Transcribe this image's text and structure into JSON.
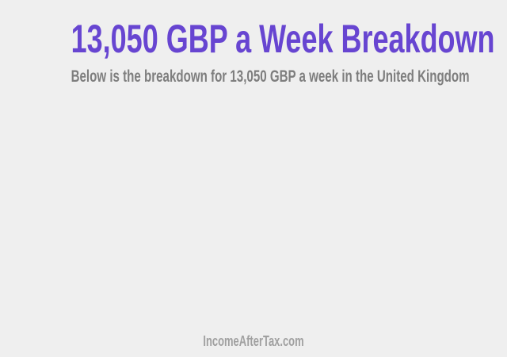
{
  "header": {
    "title": "13,050 GBP a Week Breakdown",
    "subtitle": "Below is the breakdown for 13,050 GBP a week in the United Kingdom"
  },
  "footer": {
    "site_name": "IncomeAfterTax.com"
  },
  "colors": {
    "background": "#efefef",
    "title_purple": "#6745d1",
    "subtitle_gray": "#7e7e7e",
    "footer_gray": "#a0a0a0"
  }
}
